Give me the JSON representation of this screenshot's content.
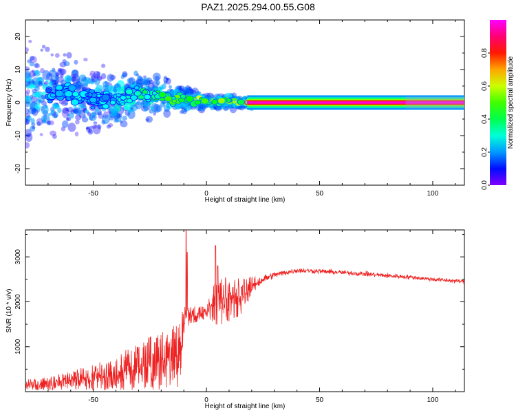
{
  "title": "PAZ1.2025.294.00.55.G08",
  "chart_data": [
    {
      "type": "heatmap",
      "name": "spectrogram",
      "xlabel": "Height of straight line (km)",
      "ylabel": "Frequency (Hz)",
      "xlim": [
        -80,
        114
      ],
      "ylim": [
        -25,
        25
      ],
      "xticks": [
        -50,
        0,
        50,
        100
      ],
      "yticks": [
        -20,
        -10,
        0,
        10,
        20
      ],
      "signal_trace": {
        "x": [
          -70,
          -60,
          -50,
          -40,
          -30,
          -25,
          -20,
          -15,
          -10,
          -5,
          0,
          5,
          10,
          15,
          20,
          40,
          60,
          80,
          100,
          114
        ],
        "frequency": [
          2,
          3,
          1,
          1,
          3,
          2,
          3,
          1,
          1,
          0.5,
          0.5,
          0,
          0.5,
          0,
          0,
          0,
          0,
          0,
          0,
          0
        ],
        "amplitude": [
          0.25,
          0.3,
          0.28,
          0.3,
          0.4,
          0.45,
          0.5,
          0.55,
          0.6,
          0.65,
          0.65,
          0.55,
          0.6,
          0.65,
          0.85,
          0.9,
          0.92,
          0.95,
          0.95,
          0.95
        ]
      },
      "colorbar": {
        "label": "Normalized spectral amplitude",
        "range": [
          0,
          1
        ],
        "ticks": [
          "0.0",
          "0.2",
          "0.4",
          "0.6",
          "0.8"
        ],
        "tick_values": [
          0.0,
          0.2,
          0.4,
          0.6,
          0.8
        ]
      }
    },
    {
      "type": "line",
      "name": "snr",
      "xlabel": "Height of straight line (km)",
      "ylabel": "SNR (10 * v/v)",
      "xlim": [
        -80,
        114
      ],
      "ylim": [
        0,
        3600
      ],
      "xticks": [
        -50,
        0,
        50,
        100
      ],
      "yticks": [
        1000,
        2000,
        3000
      ],
      "color": "#ee2222",
      "envelope": {
        "x": [
          -80,
          -70,
          -60,
          -50,
          -40,
          -30,
          -20,
          -15,
          -12,
          -10,
          -9,
          -5,
          -2,
          0,
          3,
          5,
          8,
          10,
          15,
          20,
          25,
          30,
          40,
          50,
          60,
          70,
          80,
          90,
          100,
          114
        ],
        "mean": [
          150,
          180,
          250,
          320,
          420,
          550,
          700,
          750,
          800,
          1500,
          1700,
          1700,
          1750,
          1800,
          1950,
          2000,
          2050,
          2050,
          2100,
          2350,
          2500,
          2600,
          2700,
          2680,
          2650,
          2620,
          2580,
          2550,
          2500,
          2450
        ],
        "spread": [
          120,
          150,
          200,
          300,
          400,
          550,
          650,
          700,
          750,
          600,
          250,
          200,
          180,
          150,
          400,
          600,
          500,
          550,
          450,
          250,
          150,
          100,
          90,
          80,
          80,
          80,
          80,
          70,
          70,
          70
        ]
      },
      "spikes": {
        "x": [
          -9,
          -8.5,
          4,
          5
        ],
        "y": [
          3600,
          3100,
          3250,
          2800
        ]
      }
    }
  ]
}
